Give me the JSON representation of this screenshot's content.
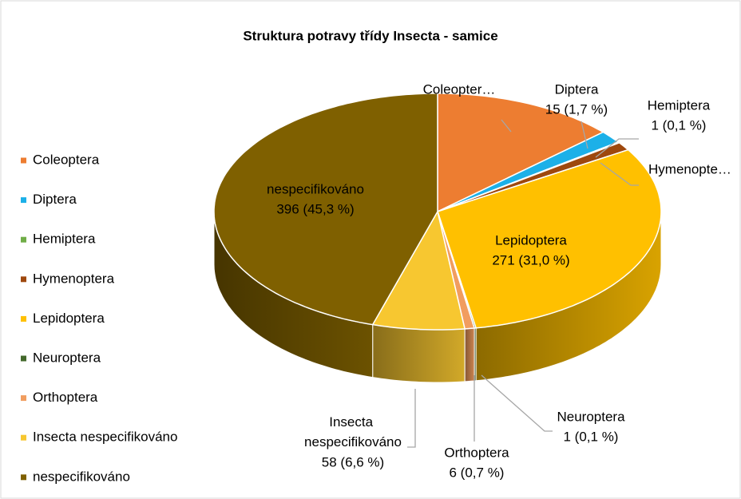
{
  "chart_data": {
    "type": "pie",
    "title": "Struktura potravy třídy Insecta - samice",
    "categories": [
      "Coleoptera",
      "Diptera",
      "Hemiptera",
      "Hymenoptera",
      "Lepidoptera",
      "Neuroptera",
      "Orthoptera",
      "Insecta nespecifikováno",
      "nespecifikováno"
    ],
    "values": [
      116,
      15,
      1,
      10,
      271,
      1,
      6,
      58,
      396
    ],
    "label_names": [
      "Coleopter…",
      "Diptera",
      "Hemiptera",
      "Hymenopte…",
      "Lepidoptera",
      "Neuroptera",
      "Orthoptera",
      "Insecta nespecifikováno",
      "nespecifikováno"
    ],
    "value_labels": [
      null,
      "15 (1,7 %)",
      "1 (0,1 %)",
      null,
      "271 (31,0 %)",
      "1 (0,1 %)",
      "6 (0,7 %)",
      "58 (6,6 %)",
      "396 (45,3 %)"
    ],
    "colors": [
      "#ed7d31",
      "#1cb0e8",
      "#70ad47",
      "#9e480e",
      "#ffc000",
      "#43682b",
      "#f19d5f",
      "#f7c730",
      "#7f6000"
    ],
    "legend": "left"
  }
}
